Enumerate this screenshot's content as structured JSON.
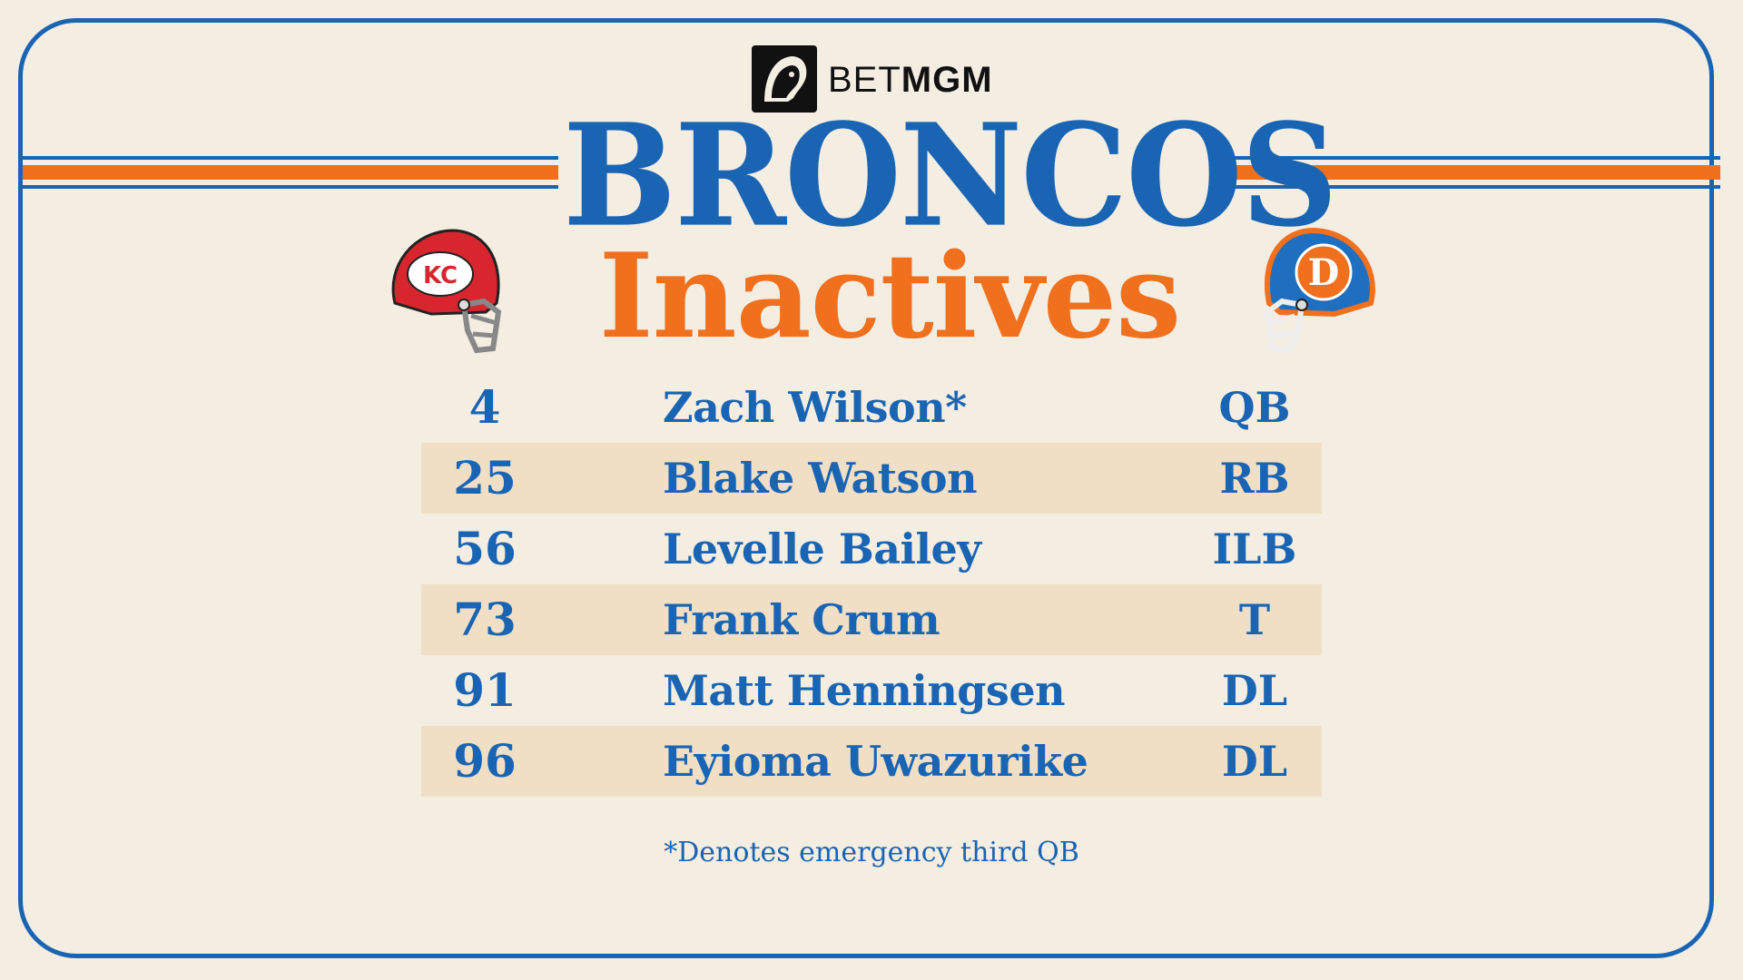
{
  "brand": {
    "part1": "BET",
    "part2": "MGM"
  },
  "title": "BRONCOS",
  "subtitle": "Inactives",
  "helmets": {
    "left_team_icon": "chiefs-helmet-icon",
    "right_team_icon": "broncos-helmet-icon",
    "left_logo_text": "KC",
    "right_logo_text": "D"
  },
  "inactives": [
    {
      "number": "4",
      "name": "Zach Wilson*",
      "position": "QB"
    },
    {
      "number": "25",
      "name": "Blake Watson",
      "position": "RB"
    },
    {
      "number": "56",
      "name": "Levelle Bailey",
      "position": "ILB"
    },
    {
      "number": "73",
      "name": "Frank Crum",
      "position": "T"
    },
    {
      "number": "91",
      "name": "Matt Henningsen",
      "position": "DL"
    },
    {
      "number": "96",
      "name": "Eyioma Uwazurike",
      "position": "DL"
    }
  ],
  "footnote": "*Denotes emergency third QB",
  "colors": {
    "blue": "#1a64b4",
    "orange": "#f0701e",
    "background": "#f3ede2",
    "row_shade": "#f0dfc4"
  }
}
